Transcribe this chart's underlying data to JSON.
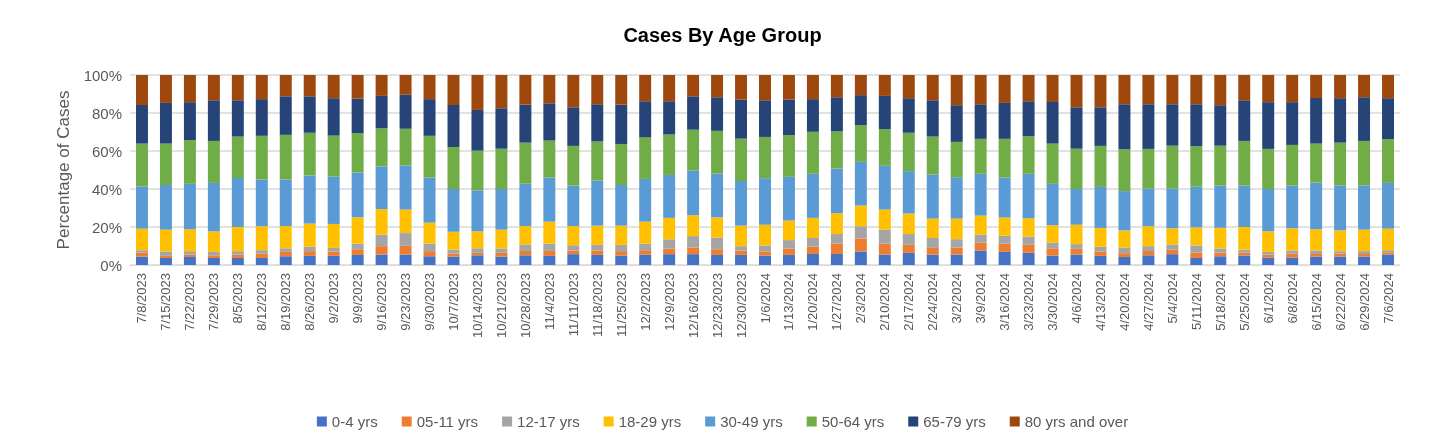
{
  "chart_data": {
    "type": "bar",
    "title": "Cases By Age Group",
    "ylabel": "Percentage of Cases",
    "stacked": true,
    "grid": "y",
    "legend": "bottom",
    "ylim": [
      0,
      100
    ],
    "yticks": [
      {
        "value": 0,
        "label": "0%"
      },
      {
        "value": 20,
        "label": "20%"
      },
      {
        "value": 40,
        "label": "40%"
      },
      {
        "value": 60,
        "label": "60%"
      },
      {
        "value": 80,
        "label": "80%"
      },
      {
        "value": 100,
        "label": "100%"
      }
    ],
    "categories": [
      "7/8/2023",
      "7/15/2023",
      "7/22/2023",
      "7/29/2023",
      "8/5/2023",
      "8/12/2023",
      "8/19/2023",
      "8/26/2023",
      "9/2/2023",
      "9/9/2023",
      "9/16/2023",
      "9/23/2023",
      "9/30/2023",
      "10/7/2023",
      "10/14/2023",
      "10/21/2023",
      "10/28/2023",
      "11/4/2023",
      "11/11/2023",
      "11/18/2023",
      "11/25/2023",
      "12/2/2023",
      "12/9/2023",
      "12/16/2023",
      "12/23/2023",
      "12/30/2023",
      "1/6/2024",
      "1/13/2024",
      "1/20/2024",
      "1/27/2024",
      "2/3/2024",
      "2/10/2024",
      "2/17/2024",
      "2/24/2024",
      "3/2/2024",
      "3/9/2024",
      "3/16/2024",
      "3/23/2024",
      "3/30/2024",
      "4/6/2024",
      "4/13/2024",
      "4/20/2024",
      "4/27/2024",
      "5/4/2024",
      "5/11/2024",
      "5/18/2024",
      "5/25/2024",
      "6/1/2024",
      "6/8/2024",
      "6/15/2024",
      "6/22/2024",
      "6/29/2024",
      "7/6/2024"
    ],
    "series": [
      {
        "name": "0-4 yrs",
        "color": "#4472c4",
        "values": [
          4.4,
          3.7,
          4.2,
          3.7,
          3.7,
          3.7,
          4.6,
          4.8,
          4.8,
          5.3,
          5.5,
          5.5,
          4.6,
          4.4,
          5.1,
          4.4,
          5.1,
          4.8,
          5.7,
          5.3,
          5.0,
          5.5,
          5.7,
          5.7,
          5.3,
          5.3,
          5.0,
          5.3,
          5.8,
          5.8,
          7.1,
          5.5,
          6.4,
          5.5,
          5.5,
          7.6,
          6.9,
          6.5,
          5.0,
          5.5,
          4.8,
          4.2,
          5.1,
          5.7,
          3.7,
          4.6,
          5.0,
          3.9,
          3.9,
          4.4,
          4.4,
          4.4,
          5.5
        ]
      },
      {
        "name": "05-11 yrs",
        "color": "#ed7d31",
        "values": [
          2.1,
          1.1,
          1.3,
          1.4,
          1.8,
          2.3,
          2.3,
          2.5,
          2.3,
          3.0,
          4.4,
          4.6,
          2.7,
          1.6,
          1.3,
          2.0,
          2.3,
          2.6,
          1.9,
          2.3,
          2.3,
          2.3,
          3.0,
          3.5,
          3.0,
          2.3,
          2.1,
          3.4,
          3.8,
          5.4,
          6.9,
          5.7,
          4.2,
          3.5,
          3.7,
          4.1,
          4.3,
          4.1,
          3.8,
          3.0,
          2.3,
          2.0,
          2.3,
          2.3,
          2.8,
          1.9,
          1.5,
          1.6,
          2.1,
          1.4,
          1.6,
          1.4,
          1.2
        ]
      },
      {
        "name": "12-17 yrs",
        "color": "#a5a5a5",
        "values": [
          1.3,
          2.3,
          1.8,
          1.8,
          1.8,
          1.8,
          1.9,
          2.3,
          1.9,
          2.9,
          6.0,
          6.7,
          4.0,
          2.1,
          2.4,
          2.3,
          3.4,
          3.8,
          2.8,
          3.0,
          3.3,
          3.5,
          4.8,
          6.0,
          6.0,
          2.3,
          3.2,
          4.4,
          4.6,
          5.1,
          6.4,
          7.4,
          5.7,
          5.2,
          4.4,
          4.4,
          4.2,
          4.4,
          3.1,
          2.5,
          2.5,
          3.0,
          2.5,
          2.8,
          3.8,
          2.2,
          1.6,
          1.4,
          1.6,
          1.8,
          1.3,
          1.5,
          1.1
        ]
      },
      {
        "name": "18-29 yrs",
        "color": "#ffc000",
        "values": [
          11.3,
          11.5,
          11.5,
          10.8,
          12.7,
          12.6,
          11.7,
          12.2,
          12.6,
          13.9,
          13.5,
          12.4,
          11.0,
          9.4,
          8.9,
          9.9,
          9.7,
          11.6,
          10.1,
          10.1,
          10.1,
          11.5,
          11.3,
          11.0,
          10.8,
          10.8,
          10.9,
          10.3,
          10.6,
          11.0,
          10.9,
          10.6,
          10.8,
          10.2,
          10.8,
          9.9,
          9.6,
          9.6,
          9.0,
          10.2,
          9.9,
          9.0,
          10.5,
          8.5,
          9.5,
          10.9,
          11.9,
          10.8,
          11.7,
          11.2,
          10.9,
          11.3,
          11.3
        ]
      },
      {
        "name": "30-49 yrs",
        "color": "#5b9bd5",
        "values": [
          22.3,
          23.5,
          23.9,
          25.5,
          25.8,
          24.6,
          24.5,
          25.3,
          24.9,
          23.6,
          22.5,
          23.2,
          23.7,
          22.5,
          21.6,
          21.4,
          22.3,
          23.2,
          21.3,
          23.7,
          21.4,
          22.5,
          22.6,
          23.5,
          23.0,
          23.5,
          24.5,
          23.0,
          23.2,
          23.5,
          23.0,
          23.0,
          22.3,
          23.2,
          21.8,
          22.0,
          21.0,
          23.4,
          21.8,
          18.8,
          21.6,
          20.7,
          19.8,
          20.9,
          21.4,
          22.2,
          21.8,
          22.3,
          22.5,
          24.6,
          23.7,
          23.3,
          24.1
        ]
      },
      {
        "name": "50-64 yrs",
        "color": "#70ad47",
        "values": [
          22.5,
          21.8,
          23.1,
          22.1,
          21.8,
          23.0,
          23.5,
          22.5,
          21.6,
          20.7,
          20.0,
          19.3,
          22.0,
          22.1,
          20.9,
          21.2,
          21.6,
          19.5,
          20.9,
          20.6,
          21.6,
          21.8,
          21.3,
          21.5,
          22.5,
          22.3,
          21.7,
          21.9,
          22.1,
          19.5,
          19.3,
          19.3,
          20.2,
          20.0,
          18.6,
          18.4,
          20.4,
          19.8,
          21.2,
          21.2,
          21.6,
          22.0,
          20.9,
          22.6,
          21.3,
          21.0,
          23.5,
          21.1,
          21.4,
          20.5,
          22.5,
          23.4,
          23.0
        ]
      },
      {
        "name": "65-79 yrs",
        "color": "#264478",
        "values": [
          20.3,
          21.4,
          19.9,
          21.4,
          19.1,
          19.3,
          20.3,
          19.2,
          19.7,
          18.2,
          17.1,
          17.9,
          19.3,
          22.1,
          21.4,
          21.3,
          20.0,
          19.6,
          20.3,
          19.6,
          20.7,
          19.1,
          17.5,
          17.6,
          17.7,
          20.6,
          19.3,
          18.8,
          17.2,
          18.0,
          15.8,
          17.5,
          18.2,
          19.1,
          19.3,
          18.2,
          18.9,
          18.4,
          21.9,
          21.8,
          20.3,
          23.7,
          23.5,
          21.8,
          22.1,
          21.3,
          21.4,
          24.6,
          22.5,
          24.0,
          23.4,
          23.0,
          21.6
        ]
      },
      {
        "name": "80 yrs and over",
        "color": "#9e480e",
        "values": [
          15.8,
          14.7,
          14.3,
          13.3,
          13.3,
          12.7,
          11.2,
          11.2,
          12.2,
          12.4,
          11.0,
          10.4,
          12.7,
          15.8,
          18.4,
          17.5,
          15.6,
          14.9,
          17.0,
          15.4,
          15.6,
          13.8,
          13.8,
          11.2,
          11.7,
          12.9,
          13.3,
          12.9,
          12.7,
          11.7,
          10.6,
          11.0,
          12.2,
          13.3,
          15.9,
          15.4,
          14.7,
          13.8,
          14.2,
          17.0,
          17.0,
          15.4,
          15.4,
          15.4,
          15.4,
          15.9,
          13.3,
          14.3,
          14.3,
          12.1,
          12.2,
          11.7,
          12.2
        ]
      }
    ]
  }
}
